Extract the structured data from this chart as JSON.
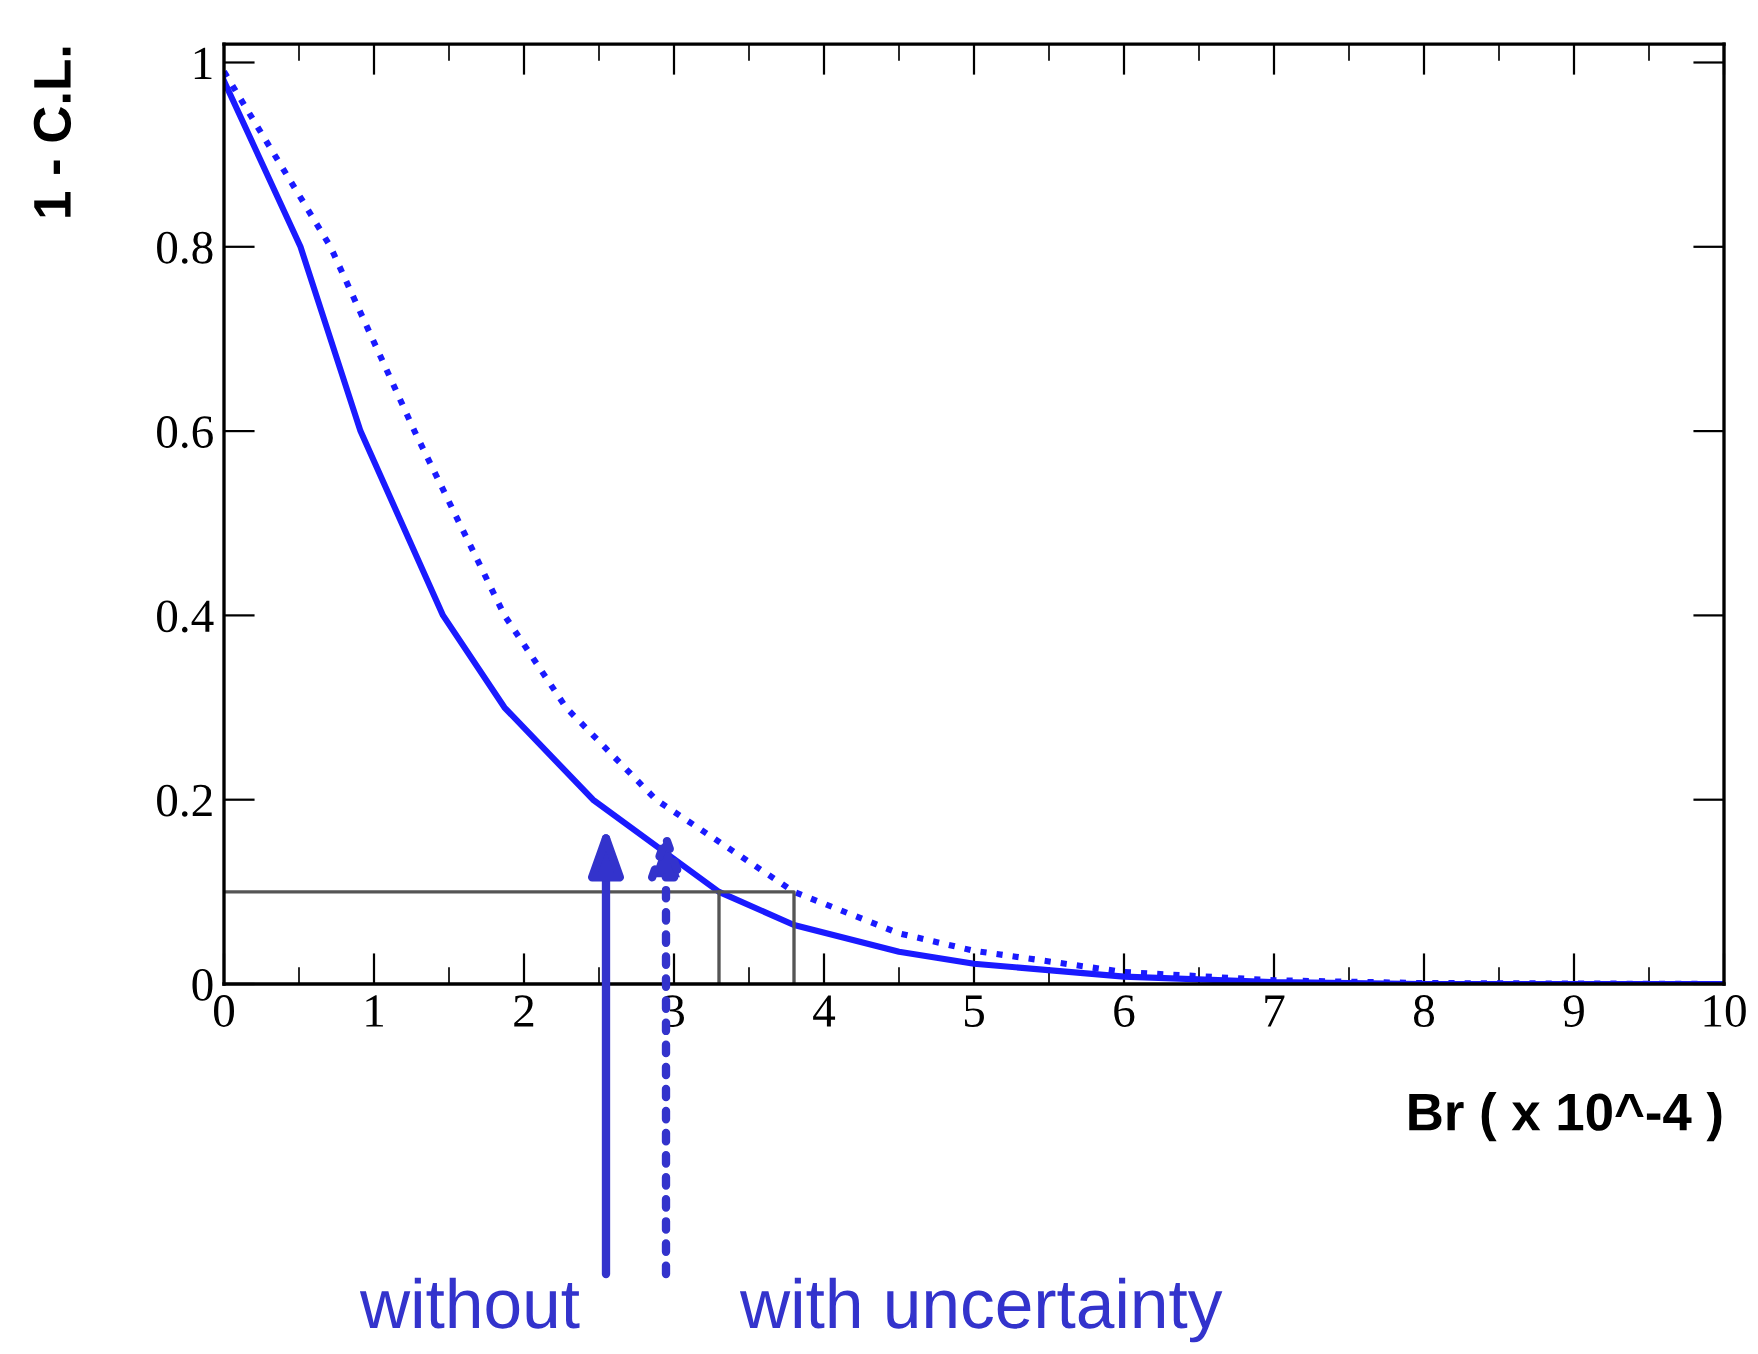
{
  "chart_data": {
    "type": "line",
    "xlabel": "Br ( x 10^-4 )",
    "ylabel": "1 - C.L.",
    "xlim": [
      0,
      10
    ],
    "ylim": [
      0,
      1.02
    ],
    "xticks": [
      0,
      1,
      2,
      3,
      4,
      5,
      6,
      7,
      8,
      9,
      10
    ],
    "yticks": [
      0,
      0.2,
      0.4,
      0.6,
      0.8,
      1
    ],
    "grid": false,
    "legend": false,
    "series": [
      {
        "color": "#1a1aff",
        "line_style": "solid",
        "x": [
          0,
          0.51,
          0.91,
          1.46,
          1.87,
          2.46,
          3.3,
          3.8,
          4.5,
          5,
          6,
          7,
          8,
          10
        ],
        "values": [
          0.98,
          0.8,
          0.6,
          0.4,
          0.3,
          0.2,
          0.1,
          0.064,
          0.035,
          0.022,
          0.008,
          0.002,
          0,
          0
        ]
      },
      {
        "color": "#1a1aff",
        "line_style": "dotted",
        "x": [
          0,
          0.71,
          1.27,
          1.87,
          2.28,
          2.88,
          3.8,
          4.5,
          5,
          6,
          7,
          8,
          10
        ],
        "values": [
          0.99,
          0.8,
          0.6,
          0.4,
          0.3,
          0.2,
          0.1,
          0.055,
          0.036,
          0.013,
          0.004,
          0.001,
          0
        ]
      },
      {
        "color": "#555555",
        "line_style": "solid",
        "x": [
          0,
          3.8,
          3.8
        ],
        "values": [
          0.1,
          0.1,
          0
        ]
      },
      {
        "color": "#555555",
        "line_style": "solid",
        "x": [
          3.3,
          3.3
        ],
        "values": [
          0.1,
          0
        ]
      }
    ],
    "annotations": [
      "without",
      "with uncertainty"
    ]
  }
}
